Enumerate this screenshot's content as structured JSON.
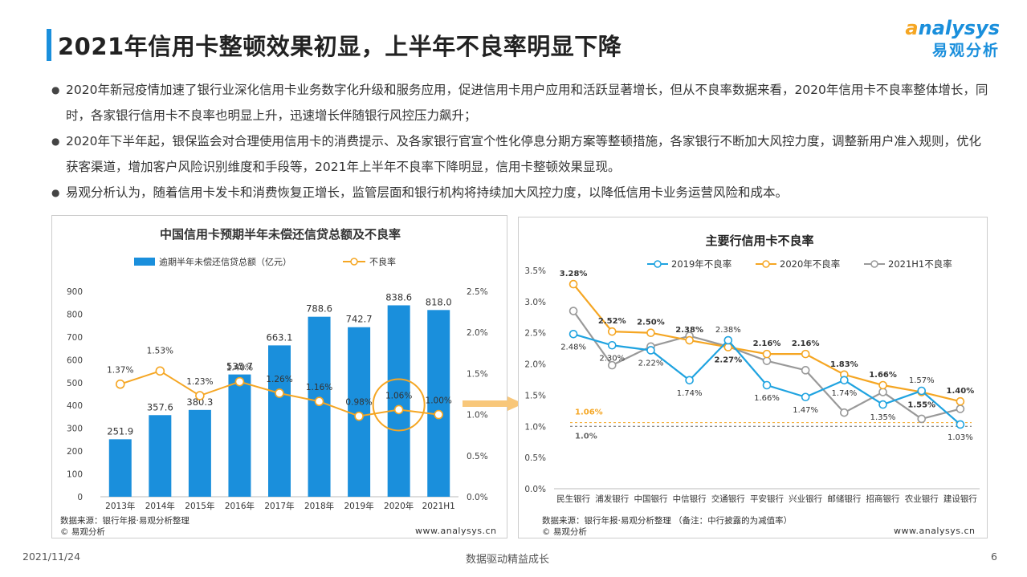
{
  "header": {
    "title": "2021年信用卡整顿效果初显，上半年不良率明显下降",
    "logo_en": "nalysys",
    "logo_en_a": "a",
    "logo_cn": "易观分析"
  },
  "bullets": [
    "2020年新冠疫情加速了银行业深化信用卡业务数字化升级和服务应用，促进信用卡用户应用和活跃显著增长，但从不良率数据来看，2020年信用卡不良率整体增长，同时，各家银行信用卡不良率也明显上升，迅速增长伴随银行风控压力飙升；",
    "2020年下半年起，银保监会对合理使用信用卡的消费提示、及各家银行官宣个性化停息分期方案等整顿措施，各家银行不断加大风控力度，调整新用户准入规则，优化获客渠道，增加客户风险识别维度和手段等，2021年上半年不良率下降明显，信用卡整顿效果显现。",
    "易观分析认为，随着信用卡发卡和消费恢复正增长，监管层面和银行机构将持续加大风控力度，以降低信用卡业务运营风险和成本。"
  ],
  "left_panel": {
    "source": "数据来源：银行年报·易观分析整理",
    "copyright": "© 易观分析",
    "site": "www.analysys.cn"
  },
  "right_panel": {
    "source": "数据来源：银行年报·易观分析整理 （备注：中行披露的为减值率）",
    "copyright": "© 易观分析",
    "site": "www.analysys.cn"
  },
  "footer": {
    "date": "2021/11/24",
    "slogan": "数据驱动精益成长",
    "page": "6"
  },
  "colors": {
    "bar": "#1a8fdc",
    "orange": "#f5a623",
    "blue": "#1fa3e0",
    "gray": "#999999",
    "accent_title": "#1a8fdc"
  },
  "chart_data": [
    {
      "type": "bar+line",
      "title": "中国信用卡预期半年未偿还信贷总额及不良率",
      "categories": [
        "2013年",
        "2014年",
        "2015年",
        "2016年",
        "2017年",
        "2018年",
        "2019年",
        "2020年",
        "2021H1"
      ],
      "series": [
        {
          "name": "逾期半年未偿还信贷总额（亿元）",
          "kind": "bar",
          "axis": "left",
          "values": [
            251.9,
            357.6,
            380.3,
            535.7,
            663.1,
            788.6,
            742.7,
            838.6,
            818.0
          ],
          "labels": [
            "251.9",
            "357.6",
            "380.3",
            "535.7",
            "663.1",
            "788.6",
            "742.7",
            "838.6",
            "818.0"
          ]
        },
        {
          "name": "不良率",
          "kind": "line",
          "axis": "right",
          "values": [
            1.37,
            1.53,
            1.23,
            1.4,
            1.26,
            1.16,
            0.98,
            1.06,
            1.0
          ],
          "labels": [
            "1.37%",
            "1.53%",
            "1.23%",
            "1.40%",
            "1.26%",
            "1.16%",
            "0.98%",
            "1.06%",
            "1.00%"
          ]
        }
      ],
      "yleft_ticks": [
        "0",
        "100",
        "200",
        "300",
        "400",
        "500",
        "600",
        "700",
        "800",
        "900"
      ],
      "yleft_range": [
        0,
        900
      ],
      "yright_ticks": [
        "0.0%",
        "0.5%",
        "1.0%",
        "1.5%",
        "2.0%",
        "2.5%"
      ],
      "yright_range": [
        0,
        2.5
      ],
      "highlight_category": "2020年",
      "legend_position": "top"
    },
    {
      "type": "line",
      "title": "主要行信用卡不良率",
      "categories": [
        "民生银行",
        "浦发银行",
        "中国银行",
        "中信银行",
        "交通银行",
        "平安银行",
        "兴业银行",
        "邮储银行",
        "招商银行",
        "农业银行",
        "建设银行"
      ],
      "series": [
        {
          "name": "2019年不良率",
          "color": "#1fa3e0",
          "values": [
            2.48,
            2.3,
            2.22,
            1.74,
            2.38,
            1.66,
            1.47,
            1.74,
            1.35,
            1.57,
            1.03
          ]
        },
        {
          "name": "2020年不良率",
          "color": "#f5a623",
          "values": [
            3.28,
            2.52,
            2.5,
            2.38,
            2.27,
            2.16,
            2.16,
            1.83,
            1.66,
            1.55,
            1.4
          ]
        },
        {
          "name": "2021H1不良率",
          "color": "#999999",
          "values": [
            2.85,
            1.98,
            2.28,
            2.45,
            2.28,
            2.05,
            1.9,
            1.22,
            1.55,
            1.12,
            1.28
          ]
        }
      ],
      "point_labels": [
        {
          "i": 0,
          "s": 0,
          "text": "2.48%"
        },
        {
          "i": 0,
          "s": 1,
          "text": "3.28%"
        },
        {
          "i": 1,
          "s": 0,
          "text": "2.30%"
        },
        {
          "i": 1,
          "s": 1,
          "text": "2.52%"
        },
        {
          "i": 2,
          "s": 0,
          "text": "2.22%"
        },
        {
          "i": 2,
          "s": 1,
          "text": "2.50%"
        },
        {
          "i": 3,
          "s": 0,
          "text": "1.74%"
        },
        {
          "i": 3,
          "s": 1,
          "text": "2.38%"
        },
        {
          "i": 4,
          "s": 0,
          "text": "2.38%"
        },
        {
          "i": 4,
          "s": 1,
          "text": "2.27%"
        },
        {
          "i": 5,
          "s": 0,
          "text": "1.66%"
        },
        {
          "i": 5,
          "s": 1,
          "text": "2.16%"
        },
        {
          "i": 6,
          "s": 0,
          "text": "1.47%"
        },
        {
          "i": 6,
          "s": 1,
          "text": "2.16%"
        },
        {
          "i": 7,
          "s": 0,
          "text": "1.74%"
        },
        {
          "i": 7,
          "s": 1,
          "text": "1.83%"
        },
        {
          "i": 8,
          "s": 0,
          "text": "1.35%"
        },
        {
          "i": 8,
          "s": 1,
          "text": "1.66%"
        },
        {
          "i": 9,
          "s": 0,
          "text": "1.57%"
        },
        {
          "i": 9,
          "s": 1,
          "text": "1.55%"
        },
        {
          "i": 10,
          "s": 0,
          "text": "1.03%"
        },
        {
          "i": 10,
          "s": 1,
          "text": "1.40%"
        }
      ],
      "reference_lines": [
        {
          "value": 1.06,
          "label": "1.06%",
          "color": "#f5a623"
        },
        {
          "value": 1.0,
          "label": "1.0%",
          "color": "#666666"
        }
      ],
      "y_ticks": [
        "0.0%",
        "0.5%",
        "1.0%",
        "1.5%",
        "2.0%",
        "2.5%",
        "3.0%",
        "3.5%"
      ],
      "y_range": [
        0,
        3.5
      ],
      "legend_position": "top"
    }
  ]
}
